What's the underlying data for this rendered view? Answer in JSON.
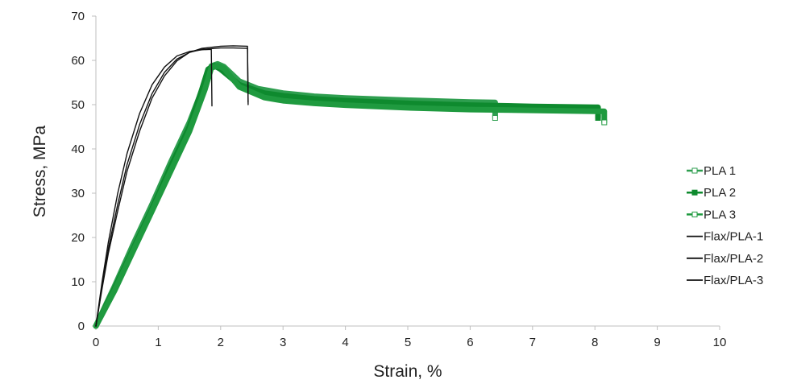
{
  "chart_data": {
    "type": "line",
    "xlabel": "Strain, %",
    "ylabel": "Stress, MPa",
    "xlim": [
      0,
      10
    ],
    "ylim": [
      0,
      70
    ],
    "x_ticks": [
      "0",
      "1",
      "2",
      "3",
      "4",
      "5",
      "6",
      "7",
      "8",
      "9",
      "10"
    ],
    "y_ticks": [
      "0",
      "10",
      "20",
      "30",
      "40",
      "50",
      "60",
      "70"
    ],
    "grid": false,
    "legend_position": "right",
    "series": [
      {
        "name": "PLA 1",
        "color": "#2e9e4f",
        "style": "thick-green-open-square-end",
        "points": [
          [
            0,
            0
          ],
          [
            0.3,
            9
          ],
          [
            0.6,
            18.5
          ],
          [
            0.9,
            27.5
          ],
          [
            1.2,
            37
          ],
          [
            1.5,
            46
          ],
          [
            1.75,
            55
          ],
          [
            1.85,
            58.7
          ],
          [
            1.95,
            59.2
          ],
          [
            2.05,
            58.6
          ],
          [
            2.3,
            55.3
          ],
          [
            2.6,
            53.6
          ],
          [
            3.0,
            52.6
          ],
          [
            3.5,
            51.9
          ],
          [
            4.0,
            51.5
          ],
          [
            5.0,
            51.0
          ],
          [
            6.0,
            50.6
          ],
          [
            6.4,
            50.5
          ],
          [
            6.4,
            47
          ]
        ]
      },
      {
        "name": "PLA 2",
        "color": "#0e8a2e",
        "style": "thick-green-filled-square-end",
        "points": [
          [
            0,
            0
          ],
          [
            0.3,
            8.5
          ],
          [
            0.6,
            17.5
          ],
          [
            0.9,
            26.5
          ],
          [
            1.2,
            36
          ],
          [
            1.5,
            45
          ],
          [
            1.7,
            53.5
          ],
          [
            1.8,
            58.0
          ],
          [
            1.9,
            58.8
          ],
          [
            2.0,
            58.0
          ],
          [
            2.3,
            54.5
          ],
          [
            2.7,
            52.6
          ],
          [
            3.0,
            52.0
          ],
          [
            3.5,
            51.3
          ],
          [
            4.0,
            50.9
          ],
          [
            5.0,
            50.3
          ],
          [
            6.0,
            49.9
          ],
          [
            7.0,
            49.6
          ],
          [
            8.0,
            49.4
          ],
          [
            8.05,
            49.4
          ],
          [
            8.05,
            47
          ]
        ]
      },
      {
        "name": "PLA 3",
        "color": "#1f9a3f",
        "style": "thick-green-open-square-end",
        "points": [
          [
            0,
            0
          ],
          [
            0.3,
            8
          ],
          [
            0.6,
            17
          ],
          [
            0.9,
            26
          ],
          [
            1.2,
            35
          ],
          [
            1.5,
            44
          ],
          [
            1.75,
            53.5
          ],
          [
            1.85,
            58.3
          ],
          [
            1.95,
            58.8
          ],
          [
            2.05,
            58.2
          ],
          [
            2.3,
            54.0
          ],
          [
            2.7,
            51.6
          ],
          [
            3.0,
            50.9
          ],
          [
            3.5,
            50.3
          ],
          [
            4.0,
            49.9
          ],
          [
            5.0,
            49.3
          ],
          [
            6.0,
            48.9
          ],
          [
            7.0,
            48.7
          ],
          [
            8.0,
            48.5
          ],
          [
            8.15,
            48.5
          ],
          [
            8.15,
            46
          ]
        ]
      },
      {
        "name": "Flax/PLA-1",
        "color": "#111111",
        "style": "thin-black",
        "points": [
          [
            0,
            0
          ],
          [
            0.1,
            10
          ],
          [
            0.2,
            19
          ],
          [
            0.35,
            30
          ],
          [
            0.5,
            39
          ],
          [
            0.7,
            48
          ],
          [
            0.9,
            54.5
          ],
          [
            1.1,
            58.5
          ],
          [
            1.3,
            61
          ],
          [
            1.5,
            62
          ],
          [
            1.7,
            62.4
          ],
          [
            1.85,
            62.5
          ],
          [
            1.86,
            49.7
          ]
        ]
      },
      {
        "name": "Flax/PLA-2",
        "color": "#111111",
        "style": "thin-black",
        "points": [
          [
            0,
            0
          ],
          [
            0.1,
            9
          ],
          [
            0.2,
            17.5
          ],
          [
            0.35,
            27.5
          ],
          [
            0.5,
            36.5
          ],
          [
            0.7,
            45.5
          ],
          [
            0.9,
            52.5
          ],
          [
            1.1,
            57.3
          ],
          [
            1.3,
            60.3
          ],
          [
            1.5,
            61.8
          ],
          [
            1.7,
            62.5
          ],
          [
            2.0,
            62.8
          ],
          [
            2.2,
            62.8
          ],
          [
            2.43,
            62.7
          ],
          [
            2.44,
            50.6
          ]
        ]
      },
      {
        "name": "Flax/PLA-3",
        "color": "#111111",
        "style": "thin-black",
        "points": [
          [
            0,
            0
          ],
          [
            0.1,
            8.5
          ],
          [
            0.2,
            16.5
          ],
          [
            0.35,
            26
          ],
          [
            0.5,
            35
          ],
          [
            0.7,
            44
          ],
          [
            0.9,
            51.5
          ],
          [
            1.1,
            56.5
          ],
          [
            1.3,
            59.9
          ],
          [
            1.5,
            61.8
          ],
          [
            1.7,
            62.7
          ],
          [
            2.0,
            63.2
          ],
          [
            2.2,
            63.3
          ],
          [
            2.43,
            63.2
          ],
          [
            2.44,
            50
          ]
        ]
      }
    ]
  }
}
